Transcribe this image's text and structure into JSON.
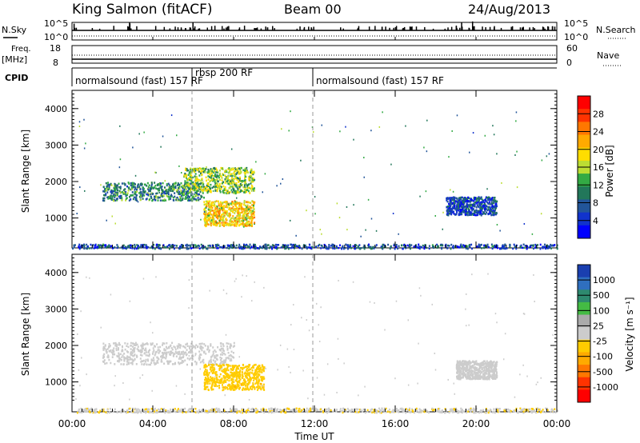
{
  "header": {
    "station": "King Salmon (fitACF)",
    "beam": "Beam 00",
    "date": "24/Aug/2013"
  },
  "top_panel": {
    "nsky_label": "N.Sky",
    "nsearch_label": "N.Search",
    "left_ticks": [
      "10^5",
      "10^0"
    ],
    "right_ticks": [
      "10^5",
      "10^0"
    ]
  },
  "freq_panel": {
    "label_freq": "Freq.",
    "label_unit": "[MHz]",
    "nave_label": "Nave",
    "left_ticks": [
      "18",
      "8"
    ],
    "right_ticks": [
      "60",
      "0"
    ]
  },
  "cpid": {
    "label": "CPID",
    "segments": [
      {
        "text": "normalsound (fast) 157 RF"
      },
      {
        "text": "rbsp 200 RF"
      },
      {
        "text": "normalsound (fast) 157 RF"
      }
    ]
  },
  "axes": {
    "ylabel": "Slant Range [km]",
    "xlabel": "Time UT",
    "yticks": [
      "4000",
      "3000",
      "2000",
      "1000"
    ],
    "xticks": [
      "00:00",
      "04:00",
      "08:00",
      "12:00",
      "16:00",
      "20:00",
      "00:00"
    ]
  },
  "power_colorbar": {
    "label": "Power [dB]",
    "ticks": [
      "28",
      "24",
      "20",
      "16",
      "12",
      "8",
      "4"
    ],
    "colors": [
      "#ff0000",
      "#ff3300",
      "#ff7700",
      "#ffaa00",
      "#ffdd00",
      "#bbdd33",
      "#33aa44",
      "#22775a",
      "#225599",
      "#1133cc",
      "#0000ff"
    ]
  },
  "velocity_colorbar": {
    "label": "Velocity [m s⁻¹]",
    "ticks": [
      "1000",
      "500",
      "100",
      "25",
      "-25",
      "-100",
      "-500",
      "-1000"
    ],
    "colors": [
      "#1a3fb0",
      "#2f6fbf",
      "#2e8a6f",
      "#44bb44",
      "#aaaaaa",
      "#cccccc",
      "#ffcc00",
      "#ffaa00",
      "#ff7700",
      "#ff3300",
      "#ff0000"
    ]
  },
  "chart_data": {
    "type": "heatmap",
    "title": "King Salmon (fitACF) Beam 00 24/Aug/2013",
    "xlabel": "Time UT",
    "ylabel": "Slant Range [km]",
    "xlim": [
      "00:00",
      "24:00"
    ],
    "ylim": [
      180,
      4500
    ],
    "panels": [
      {
        "name": "Power [dB]",
        "scale": [
          0,
          30
        ],
        "regions": [
          {
            "start": "01:30",
            "end": "06:30",
            "range_low": 1500,
            "range_high": 2000,
            "value": 10
          },
          {
            "start": "05:30",
            "end": "09:00",
            "range_low": 1700,
            "range_high": 2400,
            "value": 14
          },
          {
            "start": "06:30",
            "end": "09:00",
            "range_low": 800,
            "range_high": 1500,
            "value": 18
          },
          {
            "start": "18:30",
            "end": "21:00",
            "range_low": 1100,
            "range_high": 1600,
            "value": 6
          },
          {
            "start": "00:00",
            "end": "24:00",
            "range_low": 180,
            "range_high": 300,
            "value": 6
          }
        ]
      },
      {
        "name": "Velocity [m s-1]",
        "scale": [
          -1000,
          1000
        ],
        "regions": [
          {
            "start": "01:30",
            "end": "08:00",
            "range_low": 1500,
            "range_high": 2100,
            "value": 0
          },
          {
            "start": "06:30",
            "end": "09:30",
            "range_low": 800,
            "range_high": 1500,
            "value": -200
          },
          {
            "start": "19:00",
            "end": "21:00",
            "range_low": 1100,
            "range_high": 1600,
            "value": 0
          },
          {
            "start": "00:00",
            "end": "24:00",
            "range_low": 180,
            "range_high": 300,
            "value": -50
          }
        ]
      }
    ],
    "cpid_changes": [
      "06:00",
      "12:00"
    ]
  }
}
